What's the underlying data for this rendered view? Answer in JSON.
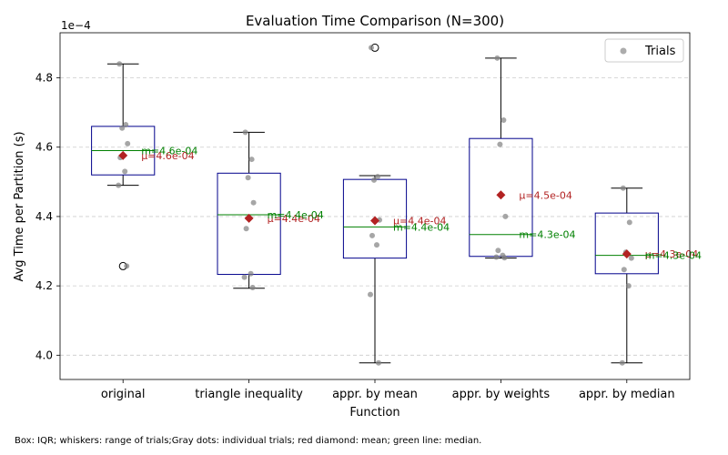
{
  "chart_data": {
    "type": "box",
    "title": "Evaluation Time Comparison (N=300)",
    "xlabel": "Function",
    "ylabel": "Avg Time per Partition (s)",
    "y_offset_label": "1e−4",
    "y_scale": 0.0001,
    "ylim": [
      3.93,
      4.93
    ],
    "yticks": [
      4.0,
      4.2,
      4.4,
      4.6,
      4.8
    ],
    "ytick_labels": [
      "4.0",
      "4.2",
      "4.4",
      "4.6",
      "4.8"
    ],
    "grid": "y-dashed",
    "legend": {
      "position": "top-right",
      "label": "Trials"
    },
    "categories": [
      "original",
      "triangle inequality",
      "appr. by mean",
      "appr. by weights",
      "appr. by median"
    ],
    "boxes": [
      {
        "q1": 4.52,
        "median": 4.59,
        "q3": 4.66,
        "whisker_low": 4.49,
        "whisker_high": 4.84,
        "mean": 4.576,
        "outliers": [
          4.257
        ],
        "trials": [
          4.84,
          4.665,
          4.655,
          4.61,
          4.57,
          4.53,
          4.49,
          4.257
        ],
        "mean_label": "μ=4.6e-04",
        "median_label": "m=4.6e-04"
      },
      {
        "q1": 4.233,
        "median": 4.405,
        "q3": 4.525,
        "whisker_low": 4.193,
        "whisker_high": 4.643,
        "mean": 4.395,
        "outliers": [],
        "trials": [
          4.643,
          4.565,
          4.512,
          4.44,
          4.365,
          4.235,
          4.225,
          4.195
        ],
        "mean_label": "μ=4.4e-04",
        "median_label": "m=4.4e-04"
      },
      {
        "q1": 4.28,
        "median": 4.37,
        "q3": 4.507,
        "whisker_low": 3.978,
        "whisker_high": 4.518,
        "mean": 4.388,
        "outliers": [
          4.887
        ],
        "trials": [
          4.887,
          4.515,
          4.505,
          4.39,
          4.345,
          4.318,
          4.175,
          3.978
        ],
        "mean_label": "μ=4.4e-04",
        "median_label": "m=4.4e-04"
      },
      {
        "q1": 4.285,
        "median": 4.348,
        "q3": 4.625,
        "whisker_low": 4.28,
        "whisker_high": 4.857,
        "mean": 4.462,
        "outliers": [],
        "trials": [
          4.857,
          4.678,
          4.608,
          4.4,
          4.302,
          4.288,
          4.283,
          4.281
        ],
        "mean_label": "μ=4.5e-04",
        "median_label": "m=4.3e-04"
      },
      {
        "q1": 4.235,
        "median": 4.288,
        "q3": 4.41,
        "whisker_low": 3.978,
        "whisker_high": 4.482,
        "mean": 4.292,
        "outliers": [],
        "trials": [
          4.482,
          4.383,
          4.297,
          4.28,
          4.247,
          4.2,
          3.978
        ],
        "mean_label": "μ=4.3e-04",
        "median_label": "m=4.3e-04"
      }
    ],
    "colors": {
      "box": "#00008b",
      "median": "#008000",
      "mean": "#b22222",
      "trial_dot": "#808080",
      "outlier": "#000000",
      "grid": "#cccccc"
    },
    "caption": "Box: IQR; whiskers: range of trials;Gray dots: individual trials; red diamond: mean; green line: median."
  }
}
